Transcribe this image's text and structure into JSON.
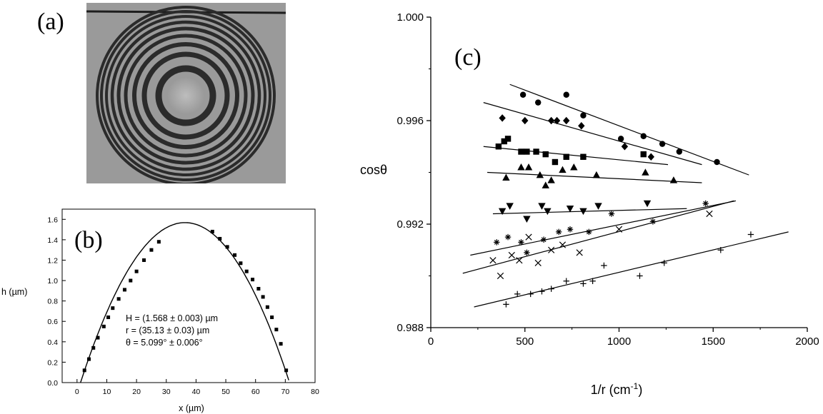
{
  "panels": {
    "a": "(a)",
    "b": "(b)",
    "c": "(c)"
  },
  "colors": {
    "photo_background": "#9a9a9a",
    "ring": "#2b2b2b",
    "ink": "#000000"
  },
  "chart_data": [
    {
      "type": "line",
      "panel": "(b)",
      "xlabel": "x (µm)",
      "ylabel": "h (µm)",
      "xlim": [
        -5,
        80
      ],
      "ylim": [
        0,
        1.7
      ],
      "xticks": [
        0,
        10,
        20,
        30,
        40,
        50,
        60,
        70,
        80
      ],
      "yticks": [
        0.0,
        0.2,
        0.4,
        0.6,
        0.8,
        1.0,
        1.2,
        1.4,
        1.6
      ],
      "fit": {
        "H": 1.568,
        "r": 35.13,
        "x0": 36.3
      },
      "points": {
        "x": [
          2.5,
          4,
          5.5,
          7,
          9,
          10.5,
          12,
          14,
          16,
          18,
          20,
          22.5,
          25,
          27.5,
          45.5,
          48,
          50.5,
          53,
          55,
          57,
          59,
          61,
          62.5,
          64,
          65.5,
          67,
          68.5,
          70.3
        ],
        "y": [
          0.12,
          0.23,
          0.34,
          0.44,
          0.55,
          0.64,
          0.73,
          0.82,
          0.91,
          1.0,
          1.09,
          1.2,
          1.3,
          1.38,
          1.48,
          1.41,
          1.33,
          1.25,
          1.17,
          1.09,
          1.01,
          0.92,
          0.84,
          0.74,
          0.64,
          0.52,
          0.38,
          0.12
        ]
      },
      "annotations": [
        "H = (1.568 ± 0.003) µm",
        "r = (35.13 ± 0.03) µm",
        "θ = 5.099° ± 0.006°"
      ]
    },
    {
      "type": "scatter",
      "panel": "(c)",
      "xlabel": "1/r (cm",
      "xlabel_sup": "-1",
      "xlabel_end": ")",
      "ylabel": "cosθ",
      "xlim": [
        0,
        2000
      ],
      "ylim": [
        0.988,
        1.0
      ],
      "xticks": [
        0,
        500,
        1000,
        1500,
        2000
      ],
      "yticks": [
        "0.988",
        "0.992",
        "0.996",
        "1.000"
      ],
      "ytick_values": [
        0.988,
        0.992,
        0.996,
        1.0
      ],
      "series": [
        {
          "marker": "circle",
          "x": [
            490,
            570,
            720,
            810,
            1010,
            1130,
            1230,
            1320,
            1520
          ],
          "y": [
            0.997,
            0.9967,
            0.997,
            0.9962,
            0.9953,
            0.9954,
            0.9951,
            0.9948,
            0.9944
          ],
          "fit": [
            [
              420,
              0.9974
            ],
            [
              1690,
              0.9939
            ]
          ]
        },
        {
          "marker": "diamond",
          "x": [
            380,
            500,
            640,
            670,
            720,
            800,
            1030,
            1170
          ],
          "y": [
            0.9961,
            0.996,
            0.996,
            0.996,
            0.996,
            0.9958,
            0.995,
            0.9946
          ],
          "fit": [
            [
              280,
              0.9967
            ],
            [
              1440,
              0.9943
            ]
          ]
        },
        {
          "marker": "square",
          "x": [
            360,
            390,
            410,
            480,
            510,
            560,
            610,
            660,
            720,
            810,
            1130
          ],
          "y": [
            0.995,
            0.9952,
            0.9953,
            0.9948,
            0.9948,
            0.9948,
            0.9947,
            0.9944,
            0.9946,
            0.9946,
            0.9947
          ],
          "fit": [
            [
              280,
              0.995
            ],
            [
              1260,
              0.9943
            ]
          ]
        },
        {
          "marker": "triangle-up",
          "x": [
            400,
            480,
            520,
            580,
            610,
            640,
            700,
            760,
            880,
            1140,
            1290
          ],
          "y": [
            0.9938,
            0.9942,
            0.9942,
            0.9939,
            0.9935,
            0.9937,
            0.9941,
            0.9942,
            0.9939,
            0.994,
            0.9937
          ],
          "fit": [
            [
              300,
              0.994
            ],
            [
              1440,
              0.9936
            ]
          ]
        },
        {
          "marker": "triangle-down",
          "x": [
            380,
            420,
            510,
            590,
            620,
            740,
            810,
            890,
            1150
          ],
          "y": [
            0.9925,
            0.9927,
            0.9922,
            0.9927,
            0.9925,
            0.9926,
            0.9925,
            0.9927,
            0.9928
          ],
          "fit": [
            [
              330,
              0.9924
            ],
            [
              1360,
              0.9926
            ]
          ]
        },
        {
          "marker": "asterisk",
          "x": [
            350,
            410,
            480,
            510,
            600,
            680,
            740,
            840,
            960,
            1180,
            1460
          ],
          "y": [
            0.9913,
            0.9915,
            0.9913,
            0.9909,
            0.9914,
            0.9917,
            0.9918,
            0.9917,
            0.9924,
            0.9921,
            0.9928
          ],
          "fit": [
            [
              210,
              0.9908
            ],
            [
              1620,
              0.9929
            ]
          ]
        },
        {
          "marker": "cross",
          "x": [
            330,
            370,
            430,
            470,
            520,
            570,
            640,
            700,
            790,
            1000,
            1480
          ],
          "y": [
            0.9906,
            0.99,
            0.9908,
            0.9906,
            0.9915,
            0.9905,
            0.991,
            0.9912,
            0.9909,
            0.9918,
            0.9924
          ],
          "fit": [
            [
              170,
              0.9901
            ],
            [
              1610,
              0.9929
            ]
          ]
        },
        {
          "marker": "plus",
          "x": [
            400,
            460,
            530,
            590,
            640,
            720,
            810,
            860,
            920,
            1110,
            1240,
            1540,
            1700
          ],
          "y": [
            0.9889,
            0.9893,
            0.9893,
            0.9894,
            0.9895,
            0.9898,
            0.9897,
            0.9898,
            0.9904,
            0.99,
            0.9905,
            0.991,
            0.9916
          ],
          "fit": [
            [
              230,
              0.9888
            ],
            [
              1900,
              0.9917
            ]
          ]
        }
      ]
    }
  ]
}
